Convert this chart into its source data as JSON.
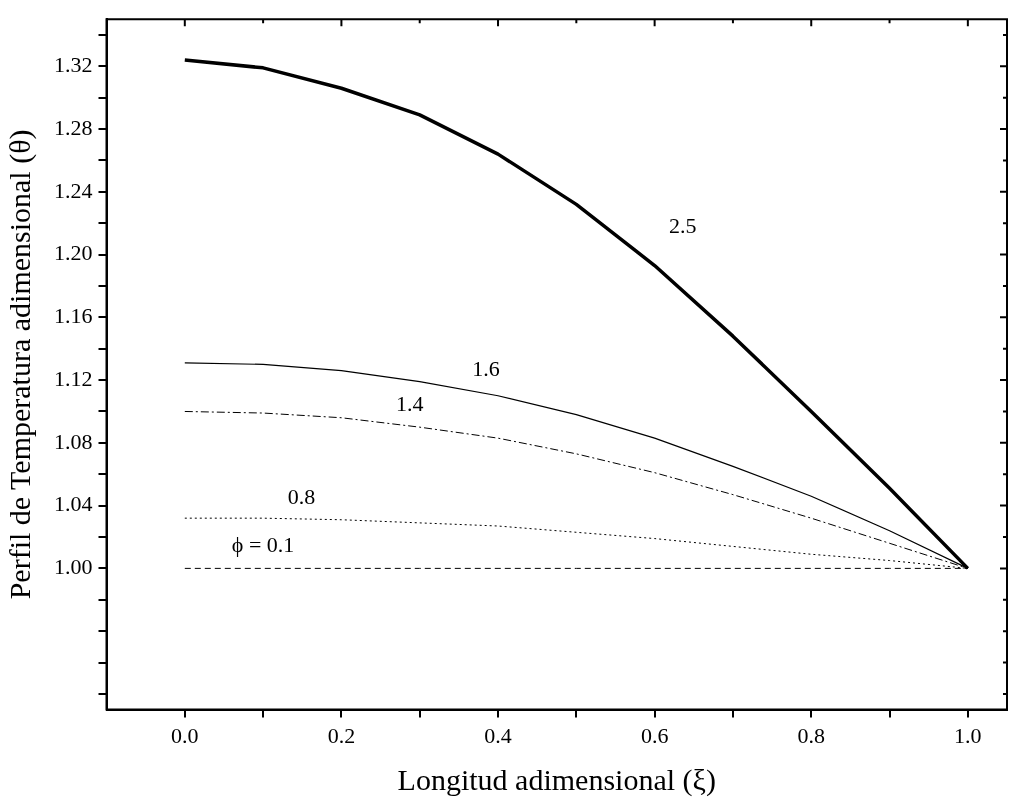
{
  "chart_data": {
    "type": "line",
    "xlabel": "Longitud adimensional (ξ)",
    "ylabel": "Perfil de Temperatura adimensional (θ)",
    "x": [
      0,
      0.1,
      0.2,
      0.3,
      0.4,
      0.5,
      0.6,
      0.7,
      0.8,
      0.9,
      1.0
    ],
    "series": [
      {
        "name": "2.5",
        "color": "#000000",
        "line_style": "solid",
        "values": [
          1.324,
          1.319,
          1.306,
          1.289,
          1.264,
          1.232,
          1.193,
          1.148,
          1.1,
          1.051,
          1.0
        ]
      },
      {
        "name": "1.6",
        "color": "#000000",
        "line_style": "solid",
        "values": [
          1.131,
          1.13,
          1.126,
          1.119,
          1.11,
          1.098,
          1.083,
          1.065,
          1.046,
          1.024,
          1.0
        ]
      },
      {
        "name": "1.4",
        "color": "#000000",
        "line_style": "dashdot",
        "values": [
          1.1,
          1.099,
          1.096,
          1.09,
          1.083,
          1.073,
          1.061,
          1.047,
          1.032,
          1.016,
          1.0
        ]
      },
      {
        "name": "0.8",
        "color": "#000000",
        "line_style": "dotted",
        "values": [
          1.032,
          1.032,
          1.031,
          1.029,
          1.027,
          1.023,
          1.019,
          1.014,
          1.009,
          1.005,
          1.0
        ]
      },
      {
        "name": "ϕ = 0.1",
        "color": "#000000",
        "line_style": "dashed",
        "values": [
          1.0,
          1.0,
          1.0,
          1.0,
          1.0,
          1.0,
          1.0,
          1.0,
          1.0,
          1.0,
          1.0
        ]
      }
    ],
    "xlim": [
      -0.1,
      1.05
    ],
    "xticks": [
      {
        "value": 0,
        "label": "0.0"
      },
      {
        "value": 0.1,
        "label": null
      },
      0.2,
      {
        "value": 0.3,
        "label": null
      },
      0.4,
      {
        "value": 0.5,
        "label": null
      },
      0.6,
      {
        "value": 0.7,
        "label": null
      },
      0.8,
      {
        "value": 0.9,
        "label": null
      },
      {
        "value": 1,
        "label": "1.0"
      }
    ],
    "ylim": [
      0.91,
      1.35
    ],
    "yticks": [
      {
        "value": 0.92,
        "label": null
      },
      {
        "value": 0.94,
        "label": null
      },
      {
        "value": 0.96,
        "label": null
      },
      {
        "value": 0.98,
        "label": null
      },
      {
        "value": 1,
        "label": "1.00"
      },
      {
        "value": 1.02,
        "label": null
      },
      1.04,
      {
        "value": 1.06,
        "label": null
      },
      1.08,
      {
        "value": 1.1,
        "label": null
      },
      1.12,
      {
        "value": 1.14,
        "label": null
      },
      1.16,
      {
        "value": 1.18,
        "label": null
      },
      {
        "value": 1.2,
        "label": "1.20"
      },
      {
        "value": 1.22,
        "label": null
      },
      1.24,
      {
        "value": 1.26,
        "label": null
      },
      1.28,
      {
        "value": 1.3,
        "label": null
      },
      1.32,
      {
        "value": 1.34,
        "label": null
      }
    ],
    "grid": false,
    "legend": false,
    "marker": "none"
  }
}
